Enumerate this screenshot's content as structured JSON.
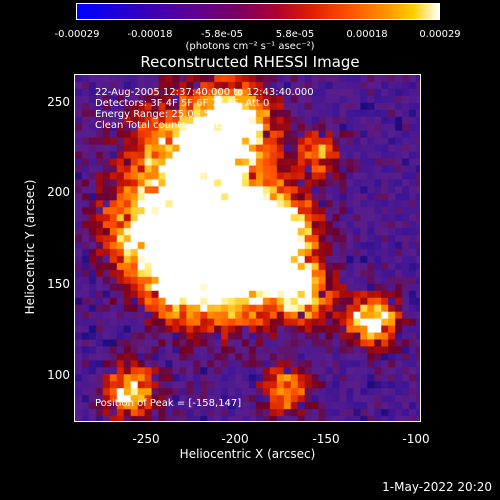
{
  "colorbar": {
    "ticks": [
      "-0.00029",
      "-0.00018",
      "-5.8e-05",
      "5.8e-05",
      "0.00018",
      "0.00029"
    ],
    "units": "(photons cm⁻² s⁻¹ asec⁻²)",
    "colors": [
      "#0000ff",
      "#5a009a",
      "#e02000",
      "#ff9000",
      "#ffffff"
    ]
  },
  "title": "Reconstructed RHESSI Image",
  "info": {
    "line1": "22-Aug-2005 12:37:40.000 to 12:43:40.000",
    "line2": "Detectors: 3F 4F 5F 6F 7F 8F, Att 0",
    "line3": "Energy Range: 25.0 - 50.0 keV",
    "line4": "Clean     Total counts: 6.75E+03",
    "peak": "Position of Peak = [-158,147]"
  },
  "axes": {
    "xlabel": "Heliocentric X (arcsec)",
    "ylabel": "Heliocentric Y (arcsec)",
    "xticks": [
      "-250",
      "-200",
      "-150",
      "-100"
    ],
    "yticks": [
      "250",
      "200",
      "150",
      "100"
    ],
    "xlim": [
      -290,
      -95
    ],
    "ylim": [
      72,
      268
    ]
  },
  "timestamp": "1-May-2022 20:20"
}
